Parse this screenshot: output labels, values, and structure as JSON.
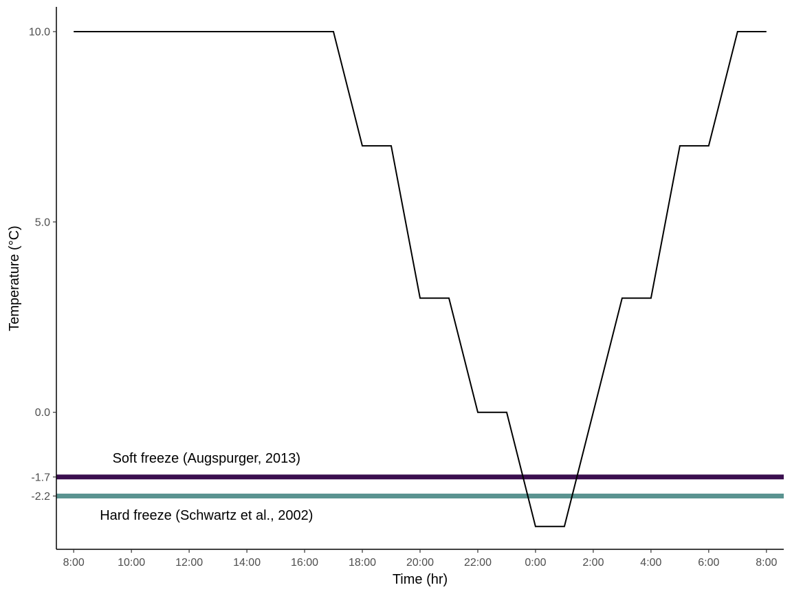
{
  "chart_data": {
    "type": "line",
    "title": "",
    "xlabel": "Time (hr)",
    "ylabel": "Temperature (°C)",
    "x_tick_labels": [
      "8:00",
      "10:00",
      "12:00",
      "14:00",
      "16:00",
      "18:00",
      "20:00",
      "22:00",
      "0:00",
      "2:00",
      "4:00",
      "6:00",
      "8:00"
    ],
    "x_tick_hours": [
      0,
      2,
      4,
      6,
      8,
      10,
      12,
      14,
      16,
      18,
      20,
      22,
      24
    ],
    "y_ticks": [
      {
        "value": 10.0,
        "label": "10.0"
      },
      {
        "value": 5.0,
        "label": "5.0"
      },
      {
        "value": 0.0,
        "label": "0.0"
      },
      {
        "value": -1.7,
        "label": "-1.7"
      },
      {
        "value": -2.2,
        "label": "-2.2"
      }
    ],
    "xlim": [
      -0.6,
      24.6
    ],
    "ylim": [
      -3.6,
      10.65
    ],
    "grid": false,
    "series": [
      {
        "color": "#000000",
        "x_hours": [
          0,
          9,
          10,
          11,
          12,
          13,
          14,
          15,
          16,
          17,
          18,
          19,
          20,
          21,
          22,
          23,
          24
        ],
        "values": [
          10,
          10,
          7,
          7,
          3,
          3,
          0,
          0,
          -3,
          -3,
          0,
          3,
          3,
          7,
          7,
          10,
          10
        ]
      }
    ],
    "reference_lines": [
      {
        "value": -1.7,
        "color": "#3b0f4f",
        "label": "Soft freeze (Augspurger, 2013)",
        "label_x_hour": 4.6,
        "label_y": -1.2
      },
      {
        "value": -2.2,
        "color": "#5a9390",
        "label": "Hard freeze (Schwartz et al., 2002)",
        "label_x_hour": 4.6,
        "label_y": -2.7
      }
    ]
  }
}
